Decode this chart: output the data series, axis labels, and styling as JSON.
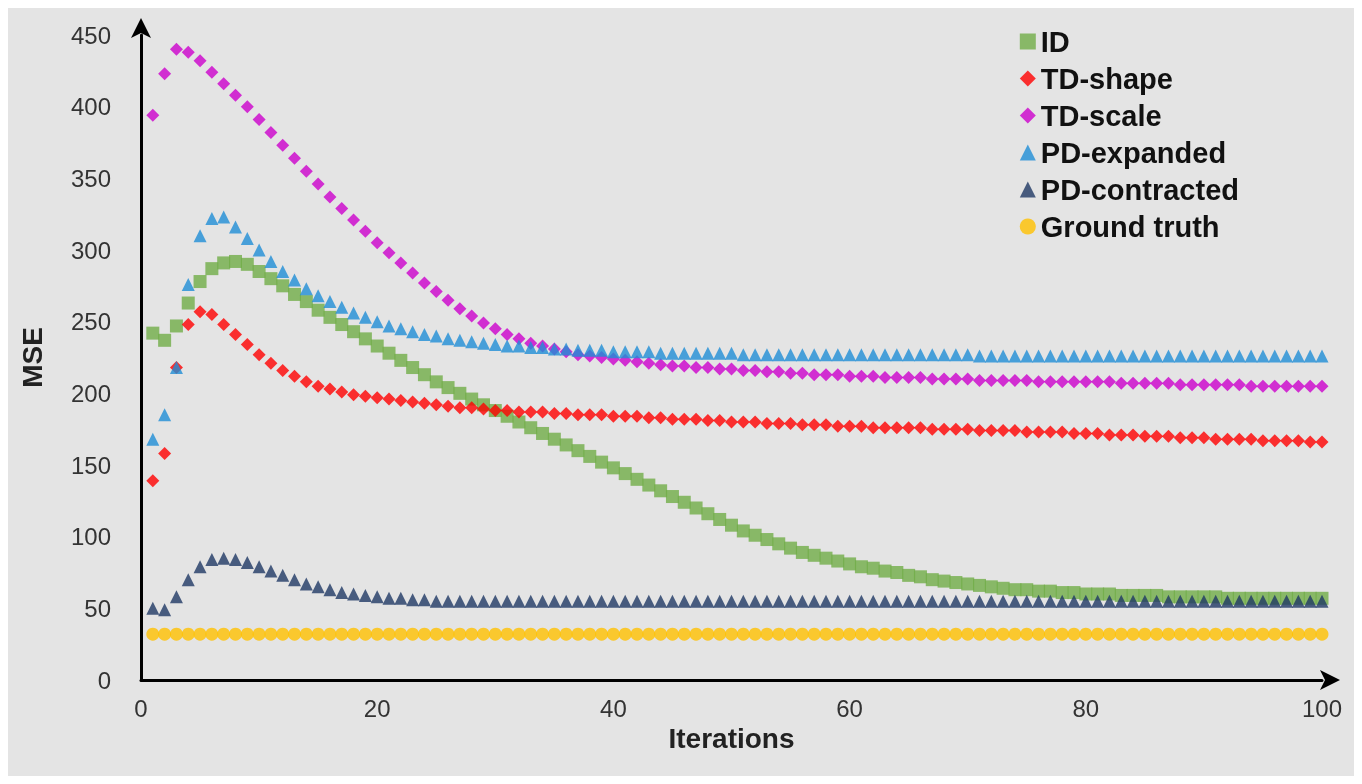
{
  "chart_data": {
    "type": "scatter",
    "xlabel": "Iterations",
    "ylabel": "MSE",
    "xlim": [
      0,
      100
    ],
    "xticks": [
      0,
      20,
      40,
      60,
      80,
      100
    ],
    "ylim": [
      0,
      450
    ],
    "yticks": [
      0,
      50,
      100,
      150,
      200,
      250,
      300,
      350,
      400,
      450
    ],
    "grid": false,
    "legend": "top right",
    "x": [
      1,
      2,
      3,
      4,
      5,
      6,
      7,
      8,
      9,
      10,
      11,
      12,
      13,
      14,
      15,
      16,
      17,
      18,
      19,
      20,
      21,
      22,
      23,
      24,
      25,
      26,
      27,
      28,
      29,
      30,
      31,
      32,
      33,
      34,
      35,
      36,
      37,
      38,
      39,
      40,
      41,
      42,
      43,
      44,
      45,
      46,
      47,
      48,
      49,
      50,
      51,
      52,
      53,
      54,
      55,
      56,
      57,
      58,
      59,
      60,
      61,
      62,
      63,
      64,
      65,
      66,
      67,
      68,
      69,
      70,
      71,
      72,
      73,
      74,
      75,
      76,
      77,
      78,
      79,
      80,
      81,
      82,
      83,
      84,
      85,
      86,
      87,
      88,
      89,
      90,
      91,
      92,
      93,
      94,
      95,
      96,
      97,
      98,
      99,
      100
    ],
    "series": [
      {
        "name": "ID",
        "color": "#70ad47",
        "marker": "square",
        "values": [
          242,
          237,
          247,
          263,
          278,
          287,
          291,
          292,
          290,
          285,
          280,
          275,
          269,
          264,
          258,
          253,
          248,
          243,
          238,
          233,
          228,
          223,
          218,
          213,
          208,
          204,
          200,
          196,
          192,
          188,
          184,
          180,
          176,
          172,
          168,
          164,
          160,
          156,
          152,
          148,
          144,
          140,
          136,
          132,
          128,
          124,
          120,
          116,
          112,
          108,
          104,
          101,
          98,
          95,
          92,
          89,
          87,
          85,
          83,
          81,
          79,
          78,
          76,
          75,
          73,
          72,
          70,
          69,
          68,
          67,
          66,
          65,
          64,
          63,
          63,
          62,
          62,
          61,
          61,
          60,
          60,
          60,
          59,
          59,
          59,
          59,
          58,
          58,
          58,
          58,
          58,
          57,
          57,
          57,
          57,
          57,
          57,
          57,
          57,
          57
        ]
      },
      {
        "name": "TD-shape",
        "color": "#ff0000",
        "marker": "diamond",
        "values": [
          139,
          158,
          218,
          248,
          257,
          255,
          248,
          241,
          234,
          227,
          221,
          216,
          212,
          208,
          205,
          203,
          201,
          199,
          198,
          197,
          196,
          195,
          194,
          193,
          192,
          191,
          190,
          190,
          189,
          188,
          188,
          187,
          187,
          187,
          186,
          186,
          185,
          185,
          185,
          184,
          184,
          184,
          183,
          183,
          182,
          182,
          182,
          181,
          181,
          180,
          180,
          180,
          179,
          179,
          179,
          178,
          178,
          178,
          177,
          177,
          177,
          176,
          176,
          176,
          176,
          176,
          175,
          175,
          175,
          175,
          174,
          174,
          174,
          174,
          173,
          173,
          173,
          173,
          172,
          172,
          172,
          171,
          171,
          171,
          170,
          170,
          170,
          169,
          169,
          169,
          168,
          168,
          168,
          168,
          167,
          167,
          167,
          167,
          166,
          166
        ]
      },
      {
        "name": "TD-scale",
        "color": "#cc00cc",
        "marker": "diamond",
        "values": [
          394,
          423,
          440,
          438,
          432,
          424,
          416,
          408,
          400,
          391,
          382,
          373,
          364,
          355,
          346,
          337,
          329,
          321,
          313,
          305,
          298,
          291,
          284,
          277,
          271,
          265,
          259,
          254,
          249,
          245,
          241,
          238,
          235,
          233,
          231,
          229,
          227,
          226,
          225,
          224,
          223,
          222,
          221,
          220,
          219,
          219,
          218,
          218,
          217,
          217,
          216,
          216,
          215,
          215,
          214,
          214,
          213,
          213,
          213,
          212,
          212,
          212,
          211,
          211,
          211,
          211,
          210,
          210,
          210,
          210,
          209,
          209,
          209,
          209,
          209,
          208,
          208,
          208,
          208,
          208,
          208,
          208,
          207,
          207,
          207,
          207,
          207,
          206,
          206,
          206,
          206,
          206,
          206,
          205,
          205,
          205,
          205,
          205,
          205,
          205
        ]
      },
      {
        "name": "PD-expanded",
        "color": "#1f8dd6",
        "marker": "triangle",
        "values": [
          168,
          185,
          218,
          276,
          310,
          322,
          323,
          316,
          308,
          300,
          292,
          285,
          279,
          273,
          268,
          264,
          260,
          256,
          253,
          250,
          247,
          245,
          243,
          241,
          240,
          238,
          237,
          236,
          235,
          234,
          233,
          233,
          232,
          232,
          231,
          231,
          230,
          230,
          230,
          229,
          229,
          229,
          229,
          228,
          228,
          228,
          228,
          228,
          228,
          228,
          227,
          227,
          227,
          227,
          227,
          227,
          227,
          227,
          227,
          227,
          227,
          227,
          227,
          227,
          227,
          227,
          227,
          227,
          227,
          227,
          226,
          226,
          226,
          226,
          226,
          226,
          226,
          226,
          226,
          226,
          226,
          226,
          226,
          226,
          226,
          226,
          226,
          226,
          226,
          226,
          226,
          226,
          226,
          226,
          226,
          226,
          226,
          226,
          226,
          226
        ]
      },
      {
        "name": "PD-contracted",
        "color": "#1f3864",
        "marker": "triangle",
        "values": [
          50,
          49,
          58,
          70,
          79,
          84,
          85,
          84,
          82,
          79,
          76,
          73,
          70,
          67,
          65,
          63,
          61,
          60,
          59,
          58,
          57,
          57,
          56,
          56,
          55,
          55,
          55,
          55,
          55,
          55,
          55,
          55,
          55,
          55,
          55,
          55,
          55,
          55,
          55,
          55,
          55,
          55,
          55,
          55,
          55,
          55,
          55,
          55,
          55,
          55,
          55,
          55,
          55,
          55,
          55,
          55,
          55,
          55,
          55,
          55,
          55,
          55,
          55,
          55,
          55,
          55,
          55,
          55,
          55,
          55,
          55,
          55,
          55,
          55,
          55,
          55,
          55,
          55,
          55,
          55,
          55,
          55,
          55,
          55,
          55,
          55,
          55,
          55,
          55,
          55,
          55,
          55,
          55,
          55,
          55,
          55,
          55,
          55,
          55,
          55
        ]
      },
      {
        "name": "Ground truth",
        "color": "#ffc000",
        "marker": "circle",
        "values": [
          32,
          32,
          32,
          32,
          32,
          32,
          32,
          32,
          32,
          32,
          32,
          32,
          32,
          32,
          32,
          32,
          32,
          32,
          32,
          32,
          32,
          32,
          32,
          32,
          32,
          32,
          32,
          32,
          32,
          32,
          32,
          32,
          32,
          32,
          32,
          32,
          32,
          32,
          32,
          32,
          32,
          32,
          32,
          32,
          32,
          32,
          32,
          32,
          32,
          32,
          32,
          32,
          32,
          32,
          32,
          32,
          32,
          32,
          32,
          32,
          32,
          32,
          32,
          32,
          32,
          32,
          32,
          32,
          32,
          32,
          32,
          32,
          32,
          32,
          32,
          32,
          32,
          32,
          32,
          32,
          32,
          32,
          32,
          32,
          32,
          32,
          32,
          32,
          32,
          32,
          32,
          32,
          32,
          32,
          32,
          32,
          32,
          32,
          32,
          32
        ]
      }
    ]
  }
}
